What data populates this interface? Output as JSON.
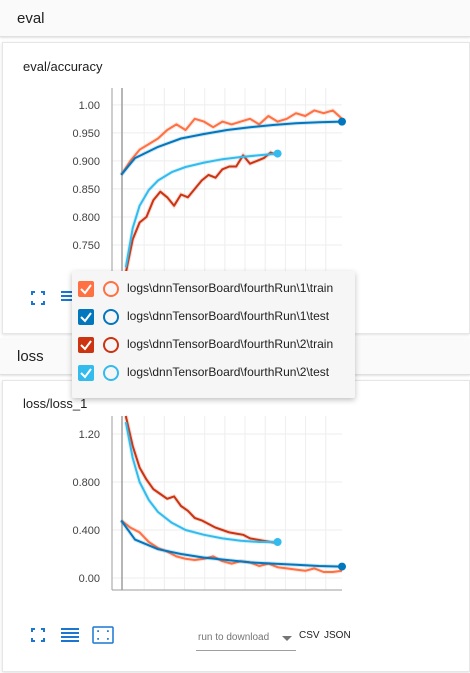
{
  "sections": {
    "eval": "eval",
    "loss": "loss"
  },
  "colors": {
    "run1_train": "#ff7043",
    "run1_test": "#0277bd",
    "run2_train": "#cc3311",
    "run2_test": "#33bbee"
  },
  "accuracy_card": {
    "title": "eval/accuracy"
  },
  "loss_card": {
    "title": "loss/loss_1"
  },
  "tooltip": {
    "runs": [
      {
        "label": "logs\\dnnTensorBoard\\fourthRun\\1\\train",
        "color": "#ff7043",
        "checked": true
      },
      {
        "label": "logs\\dnnTensorBoard\\fourthRun\\1\\test",
        "color": "#0277bd",
        "checked": true
      },
      {
        "label": "logs\\dnnTensorBoard\\fourthRun\\2\\train",
        "color": "#cc3311",
        "checked": true
      },
      {
        "label": "logs\\dnnTensorBoard\\fourthRun\\2\\test",
        "color": "#33bbee",
        "checked": true
      }
    ]
  },
  "toolbar": {
    "fit_icon": "fit-domain-icon",
    "log_icon": "log-scale-icon",
    "selection_icon": "selection-icon"
  },
  "download": {
    "placeholder": "run to download",
    "csv": "CSV",
    "json": "JSON"
  },
  "chart_data": [
    {
      "type": "line",
      "title": "eval/accuracy",
      "yticks": [
        "1.00",
        "0.950",
        "0.900",
        "0.850",
        "0.800",
        "0.750"
      ],
      "ylim": [
        0.7,
        1.03
      ],
      "xlim": [
        0,
        100
      ],
      "grid": true,
      "series": [
        {
          "name": "logs\\dnnTensorBoard\\fourthRun\\1\\train",
          "color": "#ff7043",
          "x": [
            4,
            8,
            12,
            16,
            20,
            24,
            28,
            32,
            36,
            40,
            44,
            48,
            52,
            56,
            60,
            64,
            68,
            72,
            76,
            80,
            84,
            88,
            92,
            96,
            100
          ],
          "y": [
            0.875,
            0.9,
            0.92,
            0.93,
            0.94,
            0.955,
            0.965,
            0.955,
            0.975,
            0.97,
            0.96,
            0.97,
            0.965,
            0.97,
            0.975,
            0.965,
            0.98,
            0.97,
            0.975,
            0.985,
            0.98,
            0.99,
            0.985,
            0.99,
            0.975
          ]
        },
        {
          "name": "logs\\dnnTensorBoard\\fourthRun\\1\\test",
          "color": "#0277bd",
          "x": [
            4,
            10,
            20,
            30,
            40,
            50,
            60,
            70,
            80,
            90,
            100
          ],
          "y": [
            0.875,
            0.905,
            0.925,
            0.94,
            0.948,
            0.955,
            0.96,
            0.964,
            0.967,
            0.969,
            0.97
          ]
        },
        {
          "name": "logs\\dnnTensorBoard\\fourthRun\\2\\train",
          "color": "#cc3311",
          "x": [
            6,
            9,
            12,
            15,
            18,
            21,
            24,
            27,
            30,
            33,
            36,
            39,
            42,
            45,
            48,
            51,
            54,
            57,
            60,
            63,
            66,
            69,
            72
          ],
          "y": [
            0.7,
            0.76,
            0.79,
            0.8,
            0.83,
            0.845,
            0.835,
            0.82,
            0.84,
            0.835,
            0.85,
            0.865,
            0.875,
            0.87,
            0.885,
            0.89,
            0.89,
            0.91,
            0.895,
            0.9,
            0.905,
            0.915,
            0.91
          ]
        },
        {
          "name": "logs\\dnnTensorBoard\\fourthRun\\2\\test",
          "color": "#33bbee",
          "x": [
            6,
            9,
            12,
            16,
            20,
            26,
            32,
            40,
            48,
            56,
            64,
            72
          ],
          "y": [
            0.71,
            0.78,
            0.82,
            0.848,
            0.865,
            0.88,
            0.889,
            0.897,
            0.903,
            0.907,
            0.91,
            0.913
          ]
        }
      ]
    },
    {
      "type": "line",
      "title": "loss/loss_1",
      "yticks": [
        "1.20",
        "0.800",
        "0.400",
        "0.00"
      ],
      "ylim": [
        -0.1,
        1.35
      ],
      "xlim": [
        0,
        100
      ],
      "grid": true,
      "series": [
        {
          "name": "logs\\dnnTensorBoard\\fourthRun\\1\\train",
          "color": "#ff7043",
          "x": [
            4,
            8,
            12,
            16,
            20,
            24,
            28,
            32,
            36,
            40,
            44,
            48,
            52,
            56,
            60,
            64,
            68,
            72,
            76,
            80,
            84,
            88,
            92,
            96,
            100
          ],
          "y": [
            0.48,
            0.42,
            0.38,
            0.3,
            0.25,
            0.22,
            0.18,
            0.16,
            0.15,
            0.16,
            0.18,
            0.14,
            0.12,
            0.14,
            0.13,
            0.1,
            0.12,
            0.09,
            0.08,
            0.07,
            0.06,
            0.08,
            0.05,
            0.05,
            0.06
          ]
        },
        {
          "name": "logs\\dnnTensorBoard\\fourthRun\\1\\test",
          "color": "#0277bd",
          "x": [
            4,
            10,
            20,
            30,
            40,
            50,
            60,
            70,
            80,
            90,
            100
          ],
          "y": [
            0.48,
            0.32,
            0.24,
            0.2,
            0.17,
            0.15,
            0.13,
            0.12,
            0.11,
            0.1,
            0.095
          ]
        },
        {
          "name": "logs\\dnnTensorBoard\\fourthRun\\2\\train",
          "color": "#cc3311",
          "x": [
            6,
            9,
            12,
            15,
            18,
            21,
            24,
            27,
            30,
            33,
            36,
            39,
            42,
            45,
            48,
            51,
            54,
            57,
            60,
            63,
            66,
            69,
            72
          ],
          "y": [
            1.35,
            1.1,
            0.92,
            0.82,
            0.74,
            0.7,
            0.66,
            0.68,
            0.6,
            0.56,
            0.5,
            0.48,
            0.45,
            0.42,
            0.4,
            0.38,
            0.37,
            0.36,
            0.33,
            0.32,
            0.31,
            0.3,
            0.29
          ]
        },
        {
          "name": "logs\\dnnTensorBoard\\fourthRun\\2\\test",
          "color": "#33bbee",
          "x": [
            6,
            9,
            12,
            16,
            20,
            26,
            32,
            40,
            48,
            56,
            64,
            72
          ],
          "y": [
            1.3,
            1.0,
            0.8,
            0.65,
            0.55,
            0.46,
            0.4,
            0.36,
            0.33,
            0.31,
            0.3,
            0.3
          ]
        }
      ]
    }
  ]
}
